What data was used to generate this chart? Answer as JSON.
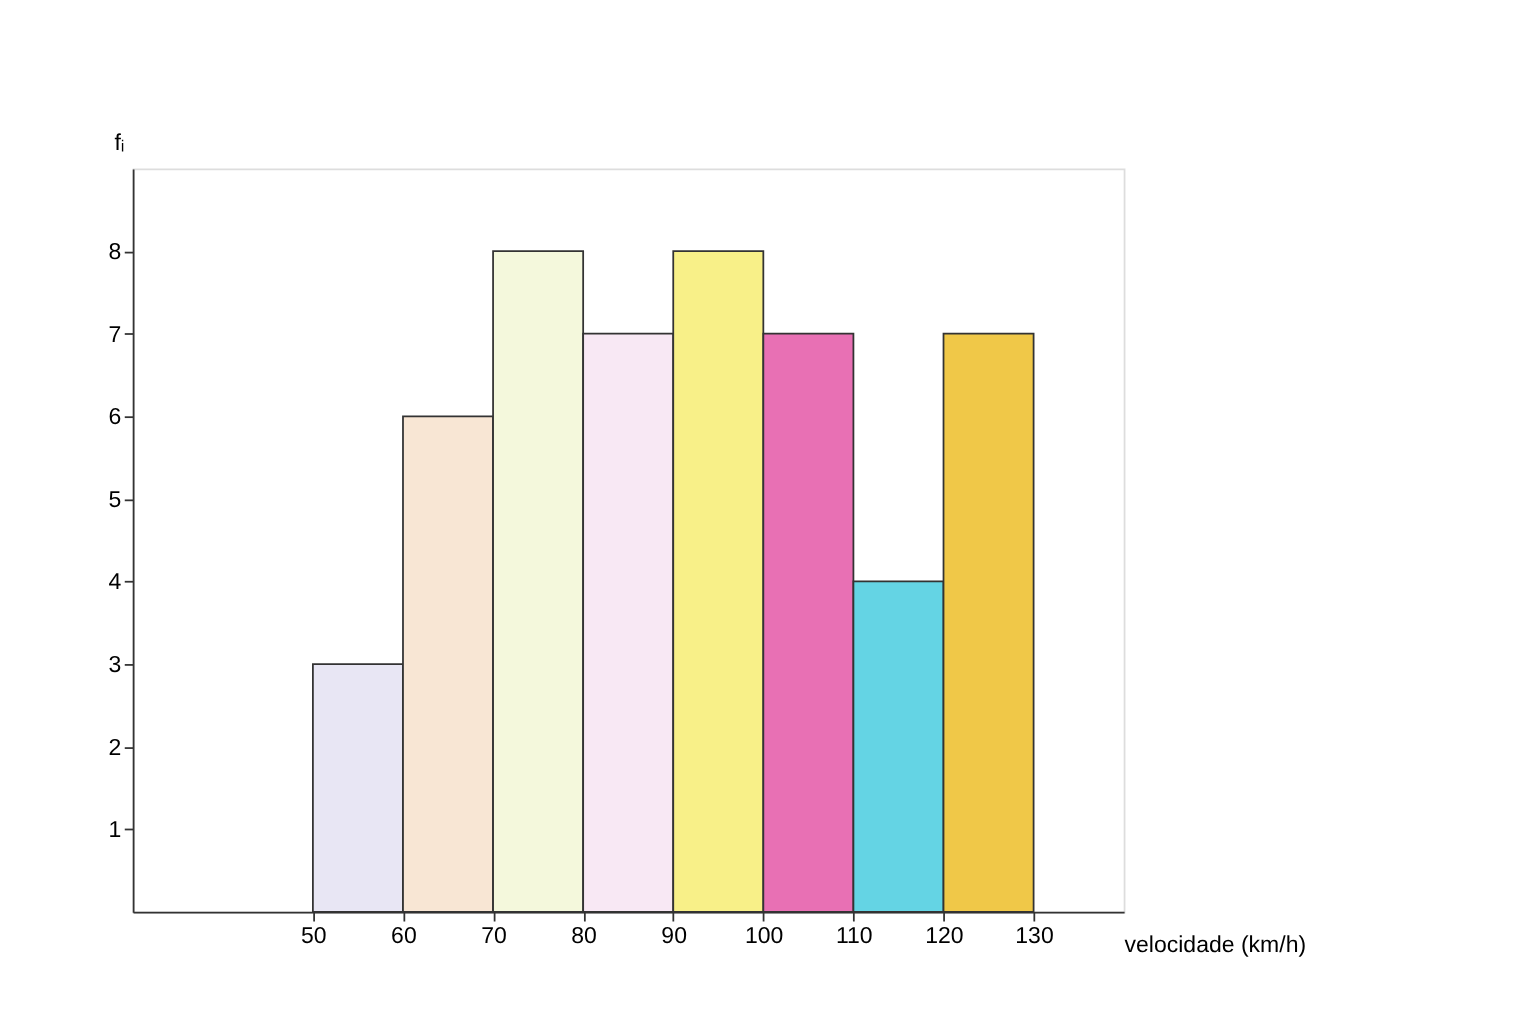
{
  "chart_data": {
    "type": "histogram",
    "xlabel": "velocidade (km/h)",
    "ylabel": "fᵢ",
    "bins": [
      50,
      60,
      70,
      80,
      90,
      100,
      110,
      120,
      130
    ],
    "values": [
      3,
      6,
      8,
      7,
      8,
      7,
      4,
      7
    ],
    "colors": [
      "#e8e6f4",
      "#f8e6d4",
      "#f4f8dc",
      "#f8e8f4",
      "#f8f088",
      "#e870b4",
      "#64d4e4",
      "#f0c848"
    ],
    "xlim": [
      30,
      140
    ],
    "ylim": [
      0,
      9
    ],
    "xticks": [
      50,
      60,
      70,
      80,
      90,
      100,
      110,
      120,
      130
    ],
    "yticks": [
      1,
      2,
      3,
      4,
      5,
      6,
      7,
      8
    ],
    "grid": false,
    "legend": false
  }
}
